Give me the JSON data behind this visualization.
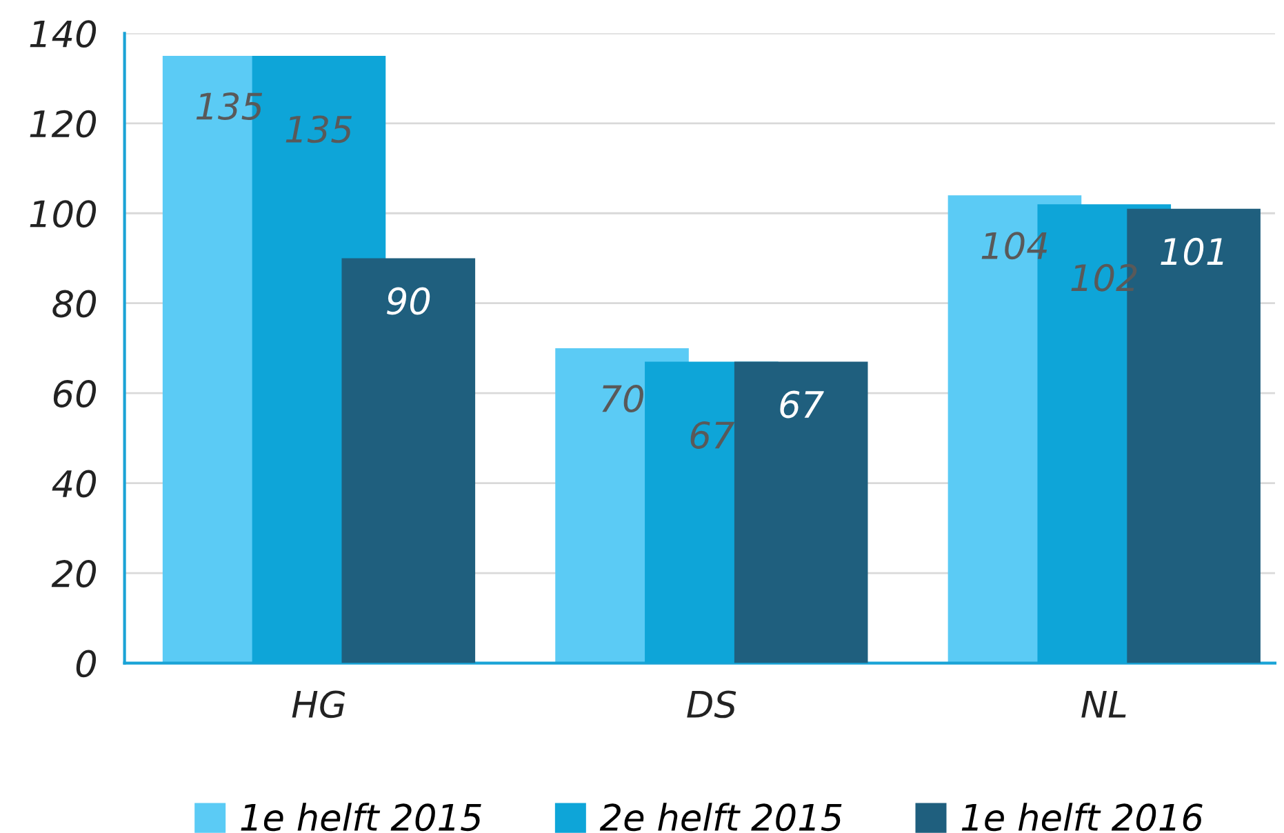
{
  "chart_data": {
    "type": "bar",
    "categories": [
      "HG",
      "DS",
      "NL"
    ],
    "series": [
      {
        "name": "1e helft 2015",
        "color": "#5bcbf5",
        "values": [
          135,
          70,
          104
        ]
      },
      {
        "name": "2e helft 2015",
        "color": "#0ea5d8",
        "values": [
          135,
          67,
          102
        ]
      },
      {
        "name": "1e helft 2016",
        "color": "#1f5f7e",
        "values": [
          90,
          67,
          101
        ]
      }
    ],
    "ylim": [
      0,
      140
    ],
    "yticks": [
      0,
      20,
      40,
      60,
      80,
      100,
      120,
      140
    ],
    "grid": "y",
    "legend": "bottom",
    "data_labels": true
  }
}
